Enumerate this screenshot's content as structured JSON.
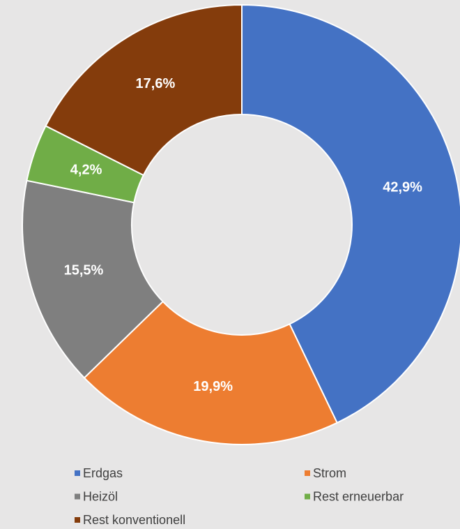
{
  "chart_data": {
    "type": "donut",
    "categories": [
      "Erdgas",
      "Strom",
      "Heizöl",
      "Rest erneuerbar",
      "Rest konventionell"
    ],
    "values": [
      42.9,
      19.9,
      15.5,
      4.2,
      17.6
    ],
    "value_labels": [
      "42,9%",
      "19,9%",
      "15,5%",
      "4,2%",
      "17,6%"
    ],
    "colors": [
      "#4472c4",
      "#ed7d31",
      "#7f7f7f",
      "#70ad47",
      "#843c0c"
    ],
    "legend": "bottom"
  }
}
